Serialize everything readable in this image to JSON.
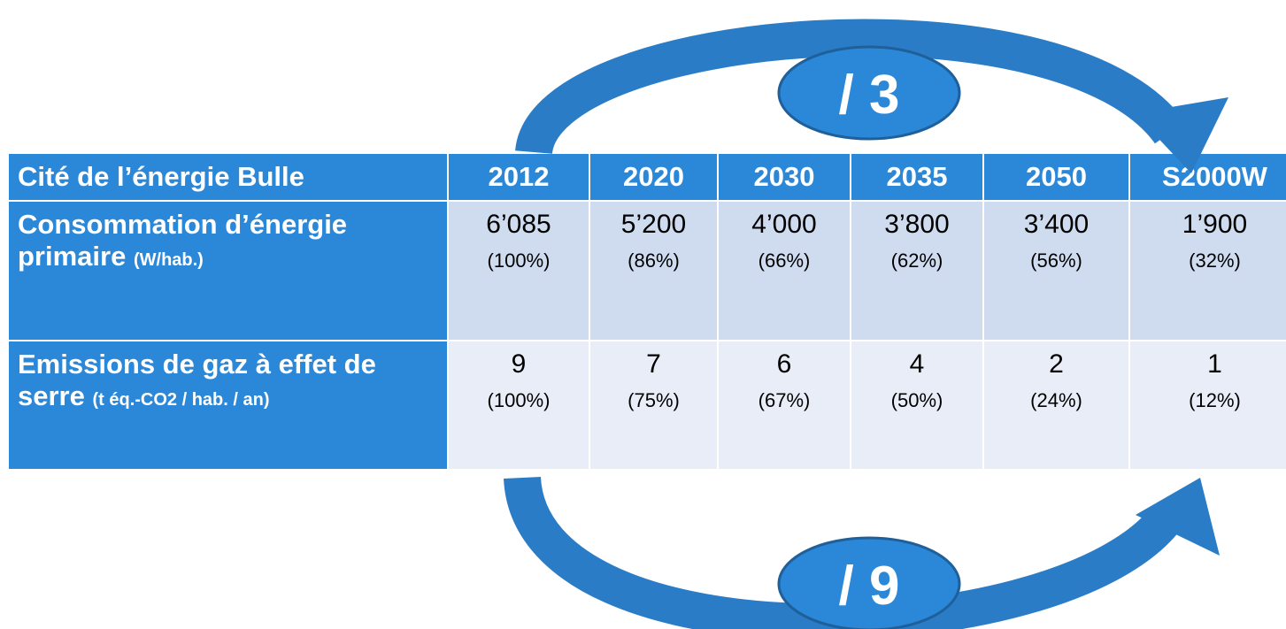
{
  "table": {
    "header": [
      "Cité de l’énergie Bulle",
      "2012",
      "2020",
      "2030",
      "2035",
      "2050",
      "S2000W"
    ],
    "rows": [
      {
        "label": "Consommation d’énergie primaire",
        "unit": "(W/hab.)",
        "values": [
          "6’085",
          "5’200",
          "4’000",
          "3’800",
          "3’400",
          "1’900"
        ],
        "shares": [
          "(100%)",
          "(86%)",
          "(66%)",
          "(62%)",
          "(56%)",
          "(32%)"
        ]
      },
      {
        "label": "Emissions de gaz à effet de serre",
        "unit": "(t éq.-CO2 / hab. / an)",
        "values": [
          "9",
          "7",
          "6",
          "4",
          "2",
          "1"
        ],
        "shares": [
          "(100%)",
          "(75%)",
          "(67%)",
          "(50%)",
          "(24%)",
          "(12%)"
        ]
      }
    ]
  },
  "annotations": {
    "top": "/ 3",
    "bottom": "/ 9"
  }
}
